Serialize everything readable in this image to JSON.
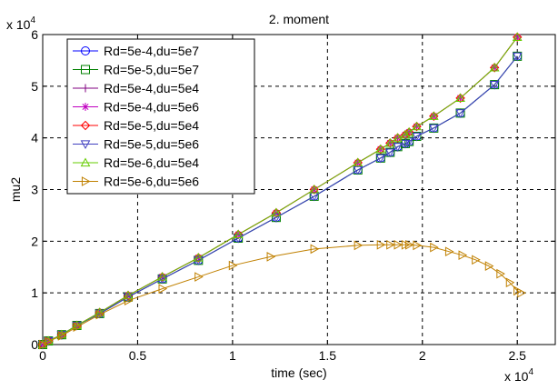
{
  "chart_data": {
    "type": "line",
    "title": "2. moment",
    "xlabel": "time (sec)",
    "ylabel": "mu2",
    "x_exponent_label": "x 10",
    "x_exponent": "4",
    "y_exponent_label": "x 10",
    "y_exponent": "4",
    "xlim": [
      0,
      27000
    ],
    "ylim": [
      0,
      60000
    ],
    "xticks": [
      0,
      5000,
      10000,
      15000,
      20000,
      25000
    ],
    "xtick_labels": [
      "0",
      "0.5",
      "1",
      "1.5",
      "2",
      "2.5"
    ],
    "yticks": [
      0,
      10000,
      20000,
      30000,
      40000,
      50000,
      60000
    ],
    "ytick_labels": [
      "0",
      "1",
      "2",
      "3",
      "4",
      "5",
      "6"
    ],
    "grid": true,
    "legend_position": "top-left",
    "series": [
      {
        "name": "Rd=5e-4,du=5e7",
        "color": "#0000ff",
        "marker": "circle",
        "x": [
          0,
          300,
          1000,
          1800,
          3000,
          4500,
          6300,
          8200,
          10300,
          12300,
          14300,
          16600,
          17800,
          18300,
          18700,
          19100,
          19300,
          19700,
          20600,
          22000,
          23800,
          25000
        ],
        "y": [
          0,
          700,
          1900,
          3700,
          6000,
          9200,
          12700,
          16300,
          20600,
          24600,
          28700,
          33800,
          36100,
          37200,
          38300,
          38900,
          39300,
          40300,
          41900,
          44800,
          50300,
          55800
        ]
      },
      {
        "name": "Rd=5e-5,du=5e7",
        "color": "#008000",
        "marker": "square",
        "x": [
          0,
          300,
          1000,
          1800,
          3000,
          4500,
          6300,
          8200,
          10300,
          12300,
          14300,
          16600,
          17800,
          18300,
          18700,
          19100,
          19300,
          19700,
          20600,
          22000,
          23800,
          25000
        ],
        "y": [
          0,
          700,
          1900,
          3700,
          6000,
          9200,
          12700,
          16300,
          20600,
          24600,
          28700,
          33800,
          36100,
          37200,
          38300,
          38900,
          39300,
          40300,
          41900,
          44800,
          50300,
          55800
        ]
      },
      {
        "name": "Rd=5e-4,du=5e4",
        "color": "#800080",
        "marker": "plus",
        "x": [
          0,
          300,
          1000,
          1800,
          3000,
          4500,
          6300,
          8200,
          10300,
          12300,
          14300,
          16600,
          17800,
          18300,
          18700,
          19100,
          19300,
          19700,
          20600,
          22000,
          23800,
          25000
        ],
        "y": [
          0,
          700,
          1900,
          3700,
          6200,
          9500,
          13100,
          16800,
          21300,
          25500,
          30000,
          35200,
          37800,
          39000,
          40000,
          40600,
          41100,
          42200,
          44200,
          47700,
          53600,
          59500
        ]
      },
      {
        "name": "Rd=5e-4,du=5e6",
        "color": "#c000c0",
        "marker": "asterisk",
        "x": [
          0,
          300,
          1000,
          1800,
          3000,
          4500,
          6300,
          8200,
          10300,
          12300,
          14300,
          16600,
          17800,
          18300,
          18700,
          19100,
          19300,
          19700,
          20600,
          22000,
          23800,
          25000
        ],
        "y": [
          0,
          700,
          1900,
          3700,
          6200,
          9500,
          13100,
          16800,
          21300,
          25500,
          30000,
          35200,
          37800,
          39000,
          40000,
          40600,
          41100,
          42200,
          44200,
          47700,
          53600,
          59500
        ]
      },
      {
        "name": "Rd=5e-5,du=5e4",
        "color": "#ff0000",
        "marker": "diamond",
        "x": [
          0,
          300,
          1000,
          1800,
          3000,
          4500,
          6300,
          8200,
          10300,
          12300,
          14300,
          16600,
          17800,
          18300,
          18700,
          19100,
          19300,
          19700,
          20600,
          22000,
          23800,
          25000
        ],
        "y": [
          0,
          700,
          1900,
          3700,
          6200,
          9500,
          13100,
          16800,
          21300,
          25500,
          30000,
          35200,
          37800,
          39000,
          40000,
          40600,
          41100,
          42200,
          44200,
          47700,
          53600,
          59500
        ]
      },
      {
        "name": "Rd=5e-5,du=5e6",
        "color": "#4040c0",
        "marker": "triangle-down",
        "x": [
          0,
          300,
          1000,
          1800,
          3000,
          4500,
          6300,
          8200,
          10300,
          12300,
          14300,
          16600,
          17800,
          18300,
          18700,
          19100,
          19300,
          19700,
          20600,
          22000,
          23800,
          25000
        ],
        "y": [
          0,
          700,
          1900,
          3700,
          6000,
          9200,
          12700,
          16300,
          20600,
          24600,
          28700,
          33800,
          36100,
          37200,
          38300,
          38900,
          39300,
          40300,
          41900,
          44800,
          50300,
          55800
        ]
      },
      {
        "name": "Rd=5e-6,du=5e4",
        "color": "#66cc00",
        "marker": "triangle-up",
        "x": [
          0,
          300,
          1000,
          1800,
          3000,
          4500,
          6300,
          8200,
          10300,
          12300,
          14300,
          16600,
          17800,
          18300,
          18700,
          19100,
          19300,
          19700,
          20600,
          22000,
          23800,
          25000
        ],
        "y": [
          0,
          700,
          1900,
          3700,
          6200,
          9500,
          13100,
          16800,
          21300,
          25500,
          30000,
          35200,
          37800,
          39000,
          40000,
          40600,
          41100,
          42200,
          44200,
          47700,
          53600,
          59500
        ]
      },
      {
        "name": "Rd=5e-6,du=5e6",
        "color": "#c08000",
        "marker": "triangle-right",
        "x": [
          0,
          300,
          1000,
          1800,
          3000,
          4500,
          6300,
          8200,
          10000,
          12000,
          14300,
          16600,
          17800,
          18300,
          18700,
          19100,
          19300,
          19700,
          20600,
          21400,
          22100,
          22800,
          23500,
          24100,
          24600,
          25000,
          25200
        ],
        "y": [
          0,
          600,
          1700,
          3400,
          5800,
          8500,
          10800,
          13100,
          15300,
          17000,
          18500,
          19200,
          19300,
          19300,
          19300,
          19300,
          19300,
          19200,
          18800,
          18000,
          17300,
          16400,
          15200,
          13700,
          12000,
          10400,
          10000
        ]
      }
    ]
  }
}
